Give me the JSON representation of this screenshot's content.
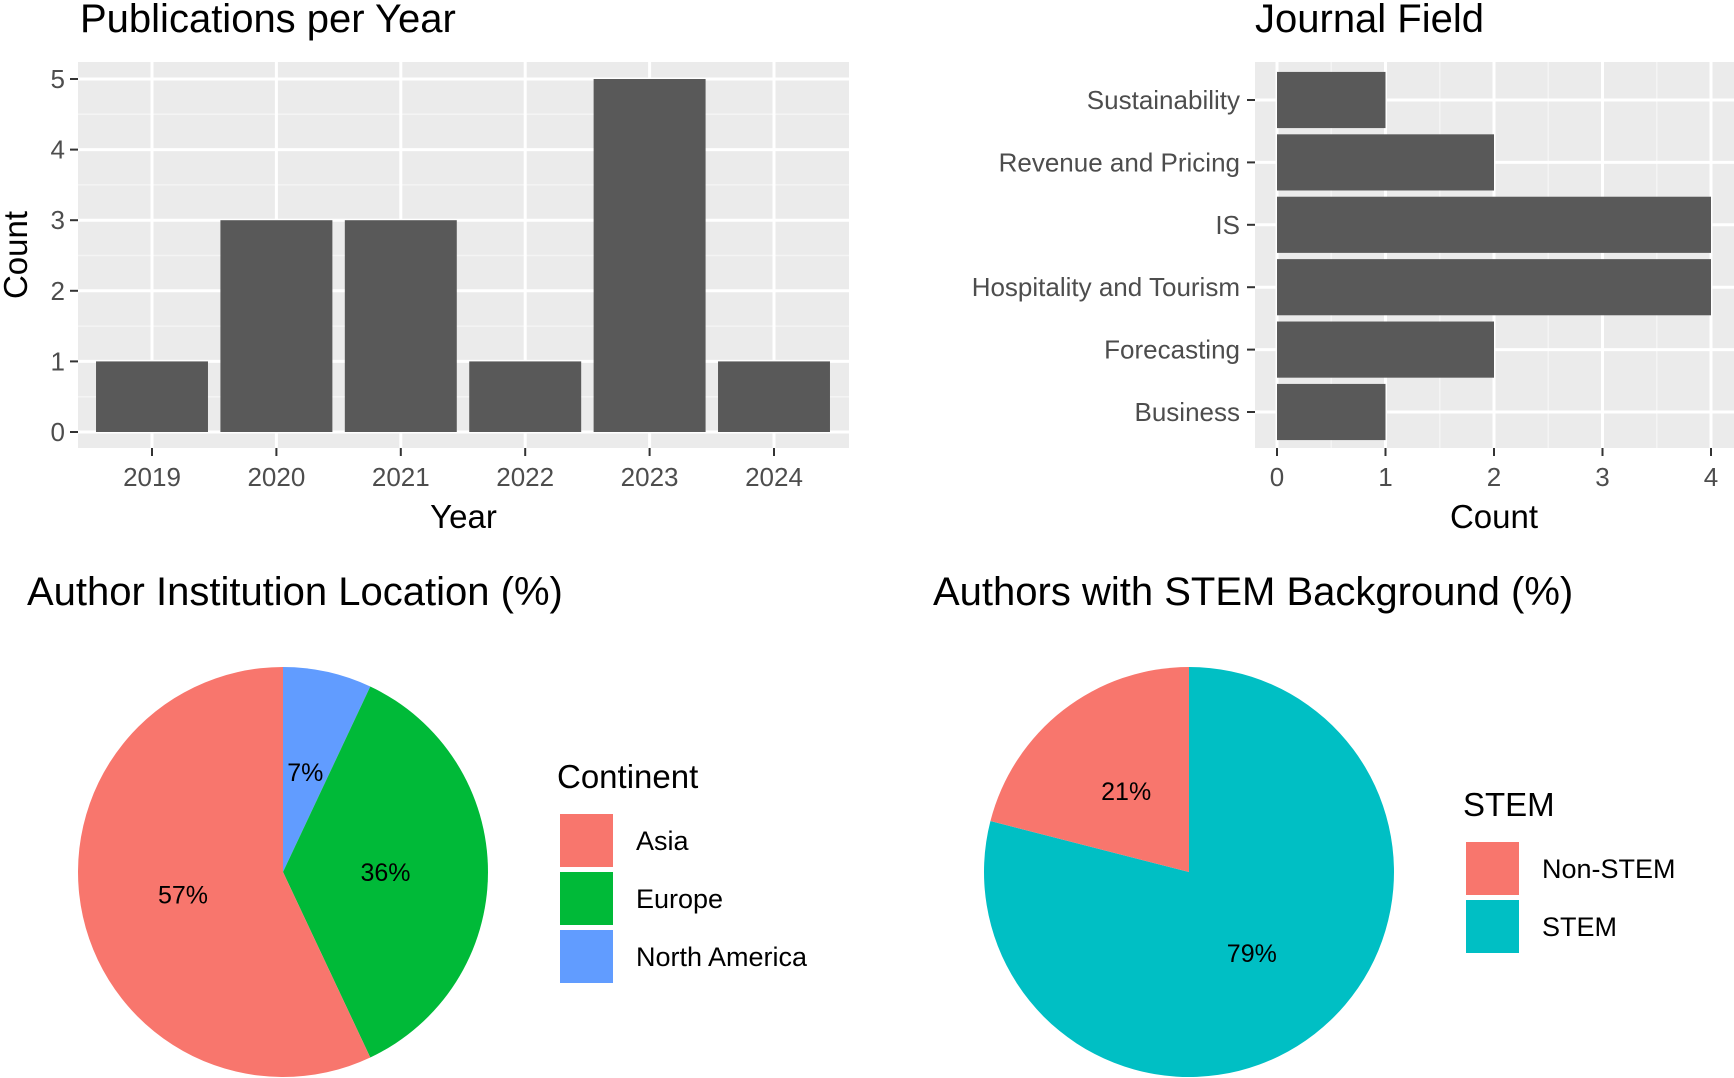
{
  "chart_data": [
    {
      "id": "pubs",
      "type": "bar",
      "title": "Publications per Year",
      "xlabel": "Year",
      "ylabel": "Count",
      "categories": [
        "2019",
        "2020",
        "2021",
        "2022",
        "2023",
        "2024"
      ],
      "values": [
        1,
        3,
        3,
        1,
        5,
        1
      ],
      "ylim": [
        0,
        5
      ],
      "yticks": [
        0,
        1,
        2,
        3,
        4,
        5
      ],
      "grid": true,
      "bar_color": "#595959",
      "panel_color": "#ebebeb"
    },
    {
      "id": "journal",
      "type": "bar",
      "orientation": "horizontal",
      "title": "Journal Field",
      "xlabel": "Count",
      "ylabel": "",
      "categories": [
        "Business",
        "Forecasting",
        "Hospitality and Tourism",
        "IS",
        "Revenue and Pricing",
        "Sustainability"
      ],
      "values": [
        1,
        2,
        4,
        4,
        2,
        1
      ],
      "xlim": [
        0,
        4
      ],
      "xticks": [
        0,
        1,
        2,
        3,
        4
      ],
      "grid": true,
      "bar_color": "#595959",
      "panel_color": "#ebebeb"
    },
    {
      "id": "location",
      "type": "pie",
      "title": "Author Institution Location (%)",
      "legend_title": "Continent",
      "legend_position": "right",
      "slices": [
        {
          "name": "Asia",
          "value": 57,
          "label": "57%",
          "color": "#F8766D"
        },
        {
          "name": "Europe",
          "value": 36,
          "label": "36%",
          "color": "#00BA38"
        },
        {
          "name": "North America",
          "value": 7,
          "label": "7%",
          "color": "#619CFF"
        }
      ]
    },
    {
      "id": "stem",
      "type": "pie",
      "title": "Authors with STEM Background (%)",
      "legend_title": "STEM",
      "legend_position": "right",
      "slices": [
        {
          "name": "Non-STEM",
          "value": 21,
          "label": "21%",
          "color": "#F8766D"
        },
        {
          "name": "STEM",
          "value": 79,
          "label": "79%",
          "color": "#00BFC4"
        }
      ]
    }
  ]
}
